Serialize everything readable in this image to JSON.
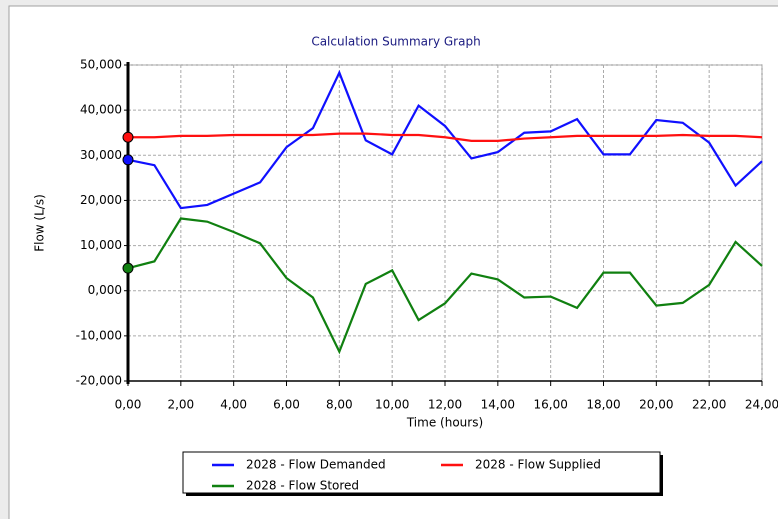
{
  "chart_data": {
    "type": "line",
    "title": "Calculation Summary Graph",
    "xlabel": "Time (hours)",
    "ylabel": "Flow (L/s)",
    "x": [
      0,
      1,
      2,
      3,
      4,
      5,
      6,
      7,
      8,
      9,
      10,
      11,
      12,
      13,
      14,
      15,
      16,
      17,
      18,
      19,
      20,
      21,
      22,
      23,
      24
    ],
    "series": [
      {
        "name": "2028 - Flow Demanded",
        "color": "#1010ff",
        "values": [
          29000,
          27800,
          18300,
          19000,
          21500,
          24000,
          31800,
          36000,
          48300,
          33300,
          30200,
          41000,
          36500,
          29300,
          30700,
          35000,
          35300,
          38000,
          30200,
          30200,
          37800,
          37200,
          32800,
          23300,
          28700
        ]
      },
      {
        "name": "2028 - Flow Supplied",
        "color": "#ff1010",
        "values": [
          34000,
          34000,
          34300,
          34300,
          34500,
          34500,
          34500,
          34500,
          34800,
          34800,
          34500,
          34500,
          34000,
          33200,
          33200,
          33700,
          34000,
          34300,
          34300,
          34300,
          34300,
          34500,
          34300,
          34300,
          34000
        ]
      },
      {
        "name": "2028 - Flow Stored",
        "color": "#108010",
        "values": [
          5000,
          6500,
          16000,
          15300,
          13000,
          10500,
          2800,
          -1500,
          -13500,
          1500,
          4500,
          -6500,
          -2800,
          3800,
          2500,
          -1500,
          -1300,
          -3800,
          4000,
          4000,
          -3300,
          -2700,
          1300,
          10800,
          5500
        ]
      }
    ],
    "xlim": [
      0,
      24
    ],
    "xticks": [
      {
        "value": 0,
        "label": "0,00"
      },
      {
        "value": 2,
        "label": "2,00"
      },
      {
        "value": 4,
        "label": "4,00"
      },
      {
        "value": 6,
        "label": "6,00"
      },
      {
        "value": 8,
        "label": "8,00"
      },
      {
        "value": 10,
        "label": "10,00"
      },
      {
        "value": 12,
        "label": "12,00"
      },
      {
        "value": 14,
        "label": "14,00"
      },
      {
        "value": 16,
        "label": "16,00"
      },
      {
        "value": 18,
        "label": "18,00"
      },
      {
        "value": 20,
        "label": "20,00"
      },
      {
        "value": 22,
        "label": "22,00"
      },
      {
        "value": 24,
        "label": "24,00"
      }
    ],
    "ylim": [
      -20000,
      50000
    ],
    "yticks": [
      {
        "value": -20000,
        "label": "-20,000"
      },
      {
        "value": -10000,
        "label": "-10,000"
      },
      {
        "value": 0,
        "label": "0,000"
      },
      {
        "value": 10000,
        "label": "10,000"
      },
      {
        "value": 20000,
        "label": "20,000"
      },
      {
        "value": 30000,
        "label": "30,000"
      },
      {
        "value": 40000,
        "label": "40,000"
      },
      {
        "value": 50000,
        "label": "50,000"
      }
    ],
    "grid": true
  }
}
